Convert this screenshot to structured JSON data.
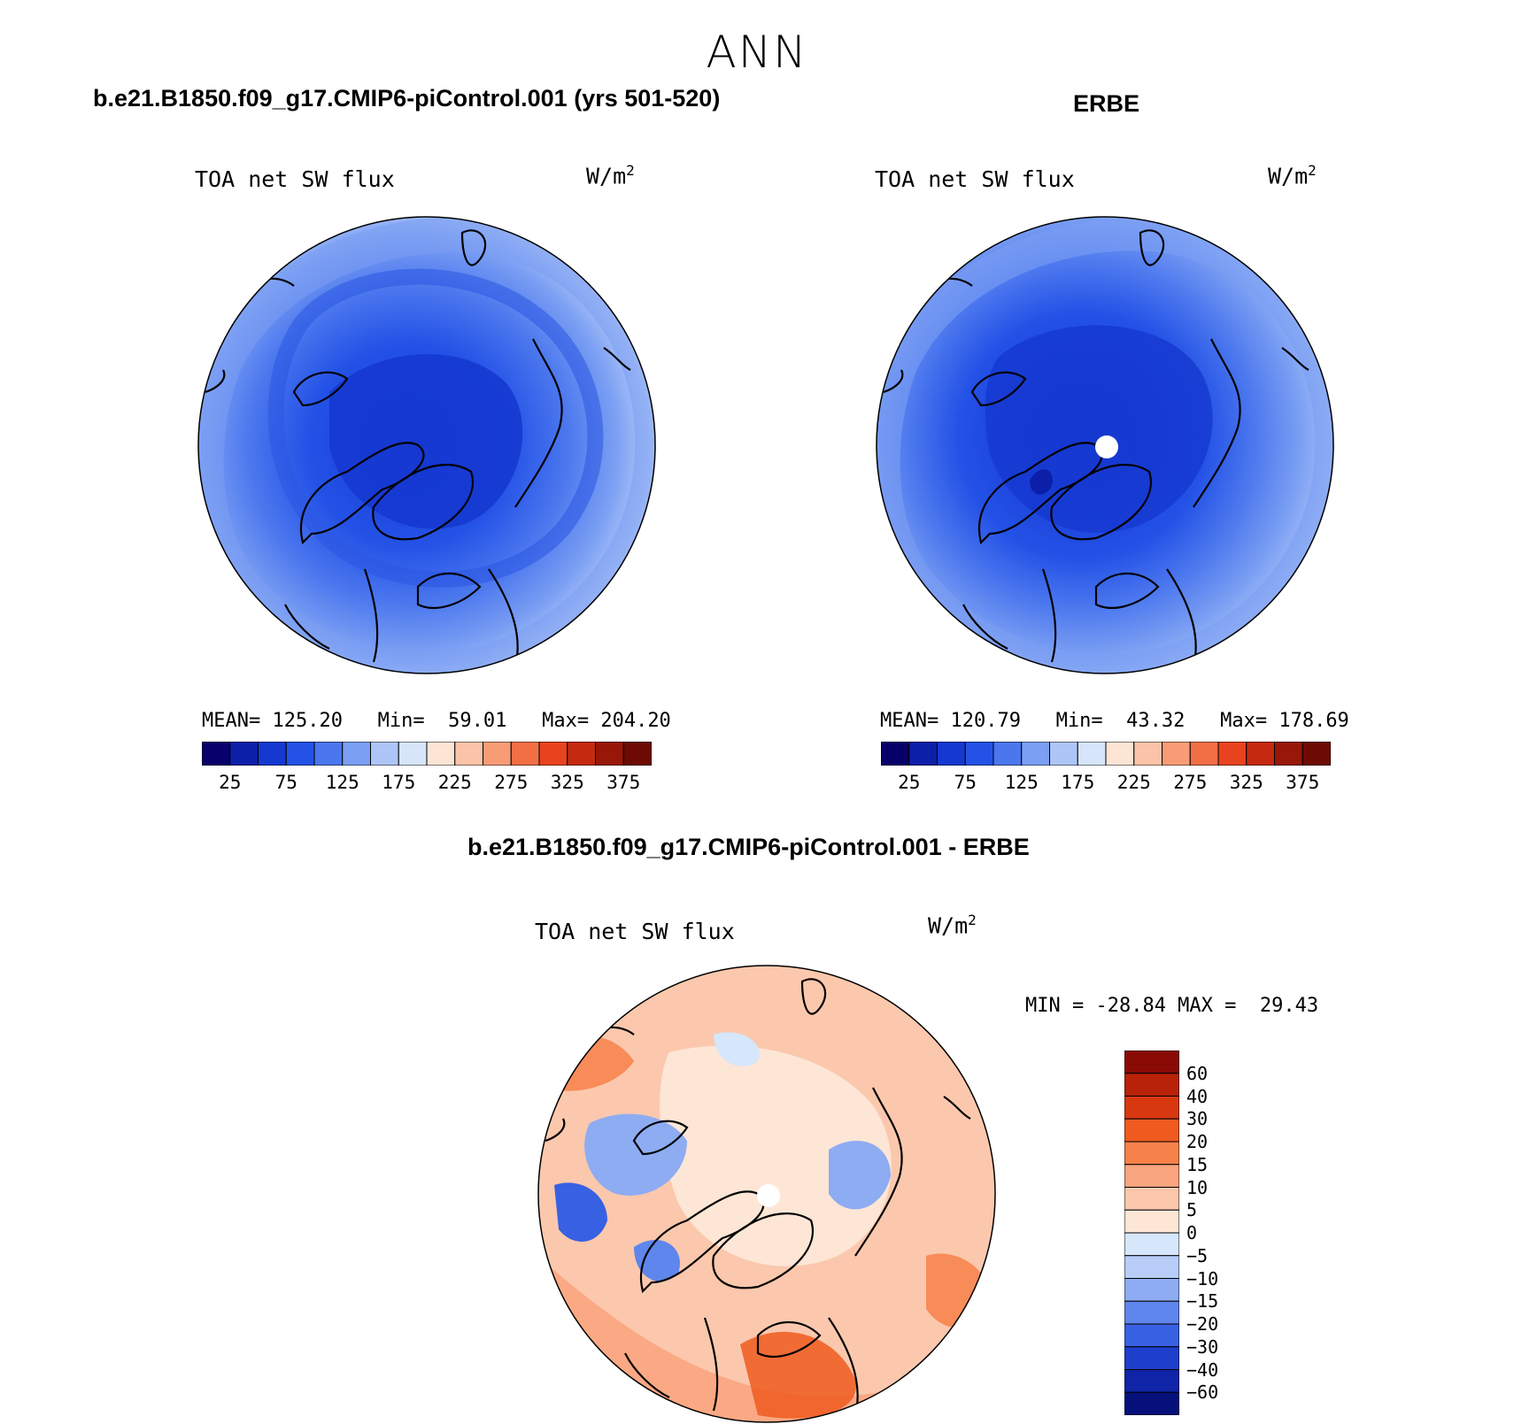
{
  "figure": {
    "title": "ANN"
  },
  "panels": [
    {
      "case_title": "b.e21.B1850.f09_g17.CMIP6-piControl.001 (yrs 501-520)",
      "variable": "TOA net SW flux",
      "units": "W/m",
      "units_sup": "2",
      "stats": "MEAN= 125.20   Min=  59.01   Max= 204.20",
      "mean": 125.2,
      "min": 59.01,
      "max": 204.2
    },
    {
      "case_title": "ERBE",
      "variable": "TOA net SW flux",
      "units": "W/m",
      "units_sup": "2",
      "stats": "MEAN= 120.79   Min=  43.32   Max= 178.69",
      "mean": 120.79,
      "min": 43.32,
      "max": 178.69
    },
    {
      "case_title": "b.e21.B1850.f09_g17.CMIP6-piControl.001 - ERBE",
      "variable": "TOA net SW flux",
      "units": "W/m",
      "units_sup": "2",
      "stats": "MIN = -28.84 MAX =  29.43",
      "min": -28.84,
      "max": 29.43
    }
  ],
  "chart_data": [
    {
      "type": "heatmap",
      "projection": "north polar stereographic",
      "title": "TOA net SW flux",
      "case": "b.e21.B1850.f09_g17.CMIP6-piControl.001 (yrs 501-520)",
      "units": "W/m2",
      "stats": {
        "mean": 125.2,
        "min": 59.01,
        "max": 204.2
      },
      "colorbar": {
        "orientation": "horizontal",
        "levels": [
          25,
          50,
          75,
          100,
          125,
          150,
          175,
          200,
          225,
          250,
          275,
          300,
          325,
          350,
          375
        ],
        "tick_labels": [
          "25",
          "75",
          "125",
          "175",
          "225",
          "275",
          "325",
          "375"
        ],
        "colors": [
          "#08006a",
          "#0b1fa8",
          "#1538d0",
          "#2452e6",
          "#4a76ee",
          "#7b9ff3",
          "#aec5f8",
          "#d7e5fb",
          "#fde5d6",
          "#fbc3a8",
          "#f89c75",
          "#f26e45",
          "#e8431f",
          "#c52a10",
          "#981709",
          "#6e0a04"
        ]
      }
    },
    {
      "type": "heatmap",
      "projection": "north polar stereographic",
      "title": "TOA net SW flux",
      "case": "ERBE",
      "units": "W/m2",
      "stats": {
        "mean": 120.79,
        "min": 43.32,
        "max": 178.69
      },
      "colorbar": {
        "orientation": "horizontal",
        "levels": [
          25,
          50,
          75,
          100,
          125,
          150,
          175,
          200,
          225,
          250,
          275,
          300,
          325,
          350,
          375
        ],
        "tick_labels": [
          "25",
          "75",
          "125",
          "175",
          "225",
          "275",
          "325",
          "375"
        ],
        "colors": [
          "#08006a",
          "#0b1fa8",
          "#1538d0",
          "#2452e6",
          "#4a76ee",
          "#7b9ff3",
          "#aec5f8",
          "#d7e5fb",
          "#fde5d6",
          "#fbc3a8",
          "#f89c75",
          "#f26e45",
          "#e8431f",
          "#c52a10",
          "#981709",
          "#6e0a04"
        ]
      }
    },
    {
      "type": "heatmap",
      "projection": "north polar stereographic",
      "title": "TOA net SW flux",
      "case": "b.e21.B1850.f09_g17.CMIP6-piControl.001 - ERBE",
      "units": "W/m2",
      "stats": {
        "min": -28.84,
        "max": 29.43
      },
      "colorbar": {
        "orientation": "vertical",
        "levels": [
          60,
          40,
          30,
          20,
          15,
          10,
          5,
          0,
          -5,
          -10,
          -15,
          -20,
          -30,
          -40,
          -60
        ],
        "tick_labels": [
          "60",
          "40",
          "30",
          "20",
          "15",
          "10",
          "5",
          "0",
          "−5",
          "−10",
          "−15",
          "−20",
          "−30",
          "−40",
          "−60"
        ],
        "colors_top_to_bottom": [
          "#8a0a05",
          "#b82208",
          "#d8380f",
          "#ef5a1f",
          "#f7814a",
          "#f9a57f",
          "#fbc8ad",
          "#fde6d6",
          "#d6e6fb",
          "#b7cdf8",
          "#8eacf2",
          "#5f86ec",
          "#3860e2",
          "#1d3fcc",
          "#0f24a6",
          "#06107a"
        ]
      }
    }
  ]
}
